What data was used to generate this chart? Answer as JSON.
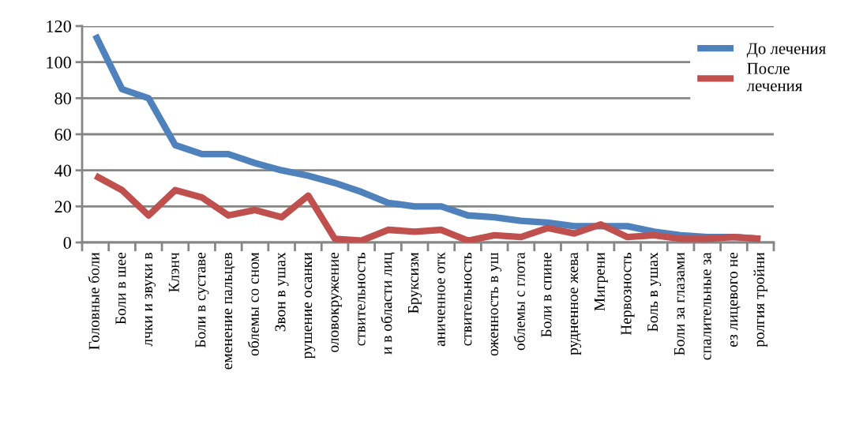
{
  "chart_data": {
    "type": "line",
    "categories": [
      "Головные боли",
      "Боли в шее",
      "лчки и звуки в",
      "Клэнч",
      "Боли в суставе",
      "еменение пальцев",
      "облемы со сном",
      "Звон в ушах",
      "рушение осанки",
      "оловокружение",
      "ствительность",
      "и в области лиц",
      "Бруксизм",
      "аниченное отк",
      "ствительность",
      "оженность в уш",
      "облемы с глота",
      "Боли в спине",
      "рудненное жева",
      "Мигрени",
      "Нервозность",
      "Боль в ушах",
      "Боли за глазами",
      "спалительные за",
      "ез лицевого не",
      "ролгия тройни"
    ],
    "series": [
      {
        "name": "До лечения",
        "color": "#4f81bd",
        "values": [
          115,
          85,
          80,
          54,
          49,
          49,
          44,
          40,
          37,
          33,
          28,
          22,
          20,
          20,
          15,
          14,
          12,
          11,
          9,
          9,
          9,
          6,
          4,
          3,
          3,
          2
        ]
      },
      {
        "name": "После\nлечения",
        "color": "#c0504d",
        "values": [
          37,
          29,
          15,
          29,
          25,
          15,
          18,
          14,
          26,
          2,
          1,
          7,
          6,
          7,
          1,
          4,
          3,
          8,
          5,
          10,
          3,
          4,
          2,
          2,
          3,
          2
        ]
      }
    ],
    "ylim": [
      0,
      120
    ],
    "yticks": [
      0,
      20,
      40,
      60,
      80,
      100,
      120
    ],
    "grid": "y",
    "legend": "top right",
    "marker": "none",
    "line_style": "solid"
  }
}
